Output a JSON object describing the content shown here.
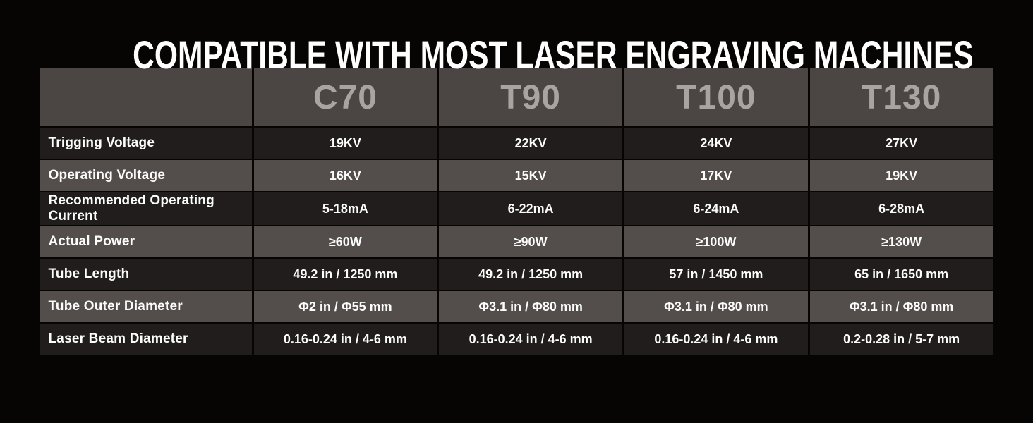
{
  "page": {
    "title": "COMPATIBLE WITH MOST LASER ENGRAVING MACHINES"
  },
  "colors": {
    "page_bg": "#060504",
    "header_bg": "#4b4644",
    "header_text": "#a7a4a2",
    "row_dark_bg": "#201d1c",
    "row_light_bg": "#534e4b",
    "cell_text": "#fcfcfc",
    "grid_gap": "#060504"
  },
  "table": {
    "columns": [
      "C70",
      "T90",
      "T100",
      "T130"
    ],
    "rows": [
      {
        "label": "Trigging Voltage",
        "values": [
          "19KV",
          "22KV",
          "24KV",
          "27KV"
        ]
      },
      {
        "label": "Operating Voltage",
        "values": [
          "16KV",
          "15KV",
          "17KV",
          "19KV"
        ]
      },
      {
        "label": "Recommended Operating Current",
        "values": [
          "5-18mA",
          "6-22mA",
          "6-24mA",
          "6-28mA"
        ]
      },
      {
        "label": "Actual Power",
        "values": [
          "≥60W",
          "≥90W",
          "≥100W",
          "≥130W"
        ]
      },
      {
        "label": "Tube Length",
        "values": [
          "49.2 in / 1250 mm",
          "49.2 in / 1250 mm",
          "57 in / 1450 mm",
          "65 in / 1650 mm"
        ]
      },
      {
        "label": "Tube Outer Diameter",
        "values": [
          "Φ2 in / Φ55 mm",
          "Φ3.1 in / Φ80 mm",
          "Φ3.1 in / Φ80 mm",
          "Φ3.1 in / Φ80 mm"
        ]
      },
      {
        "label": "Laser Beam Diameter",
        "values": [
          "0.16-0.24 in / 4-6 mm",
          "0.16-0.24 in / 4-6 mm",
          "0.16-0.24 in / 4-6 mm",
          "0.2-0.28 in / 5-7 mm"
        ]
      }
    ]
  }
}
